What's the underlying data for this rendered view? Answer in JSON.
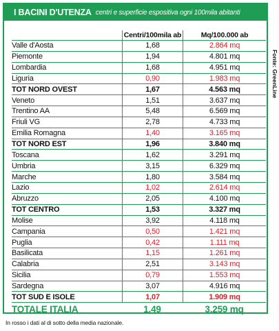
{
  "header": {
    "title": "I BACINI D'UTENZA",
    "subtitle": "centri e superficie espositiva ogni 100mila abitanti"
  },
  "columns": [
    "",
    "Centri/100mila ab",
    "Mq/100.000 ab"
  ],
  "rows": [
    {
      "name": "Valle d'Aosta",
      "centri": "1,68",
      "mq": "2.864 mq",
      "centri_red": false,
      "mq_red": true,
      "bold": false
    },
    {
      "name": "Piemonte",
      "centri": "1,94",
      "mq": "4.801 mq",
      "centri_red": false,
      "mq_red": false,
      "bold": false
    },
    {
      "name": "Lombardia",
      "centri": "1,68",
      "mq": "4.951 mq",
      "centri_red": false,
      "mq_red": false,
      "bold": false
    },
    {
      "name": "Liguria",
      "centri": "0,90",
      "mq": "1.983 mq",
      "centri_red": true,
      "mq_red": true,
      "bold": false
    },
    {
      "name": "TOT NORD OVEST",
      "centri": "1,67",
      "mq": "4.563 mq",
      "centri_red": false,
      "mq_red": false,
      "bold": true
    },
    {
      "name": "Veneto",
      "centri": "1,51",
      "mq": "3.637 mq",
      "centri_red": false,
      "mq_red": false,
      "bold": false
    },
    {
      "name": "Trentino AA",
      "centri": "5,48",
      "mq": "6.569  mq",
      "centri_red": false,
      "mq_red": false,
      "bold": false
    },
    {
      "name": "Friuli VG",
      "centri": "2,78",
      "mq": "4.733 mq",
      "centri_red": false,
      "mq_red": false,
      "bold": false
    },
    {
      "name": "Emilia Romagna",
      "centri": "1,40",
      "mq": "3.165 mq",
      "centri_red": true,
      "mq_red": true,
      "bold": false
    },
    {
      "name": "TOT NORD EST",
      "centri": "1,96",
      "mq": "3.840 mq",
      "centri_red": false,
      "mq_red": false,
      "bold": true
    },
    {
      "name": "Toscana",
      "centri": "1,62",
      "mq": "3.291 mq",
      "centri_red": false,
      "mq_red": false,
      "bold": false
    },
    {
      "name": "Umbria",
      "centri": "3,15",
      "mq": "6.329 mq",
      "centri_red": false,
      "mq_red": false,
      "bold": false
    },
    {
      "name": "Marche",
      "centri": "1,80",
      "mq": "3.584 mq",
      "centri_red": false,
      "mq_red": false,
      "bold": false
    },
    {
      "name": "Lazio",
      "centri": "1,02",
      "mq": "2.614 mq",
      "centri_red": true,
      "mq_red": true,
      "bold": false
    },
    {
      "name": "Abruzzo",
      "centri": "2,05",
      "mq": "4.100 mq",
      "centri_red": false,
      "mq_red": false,
      "bold": false
    },
    {
      "name": "TOT CENTRO",
      "centri": "1,53",
      "mq": "3.327 mq",
      "centri_red": false,
      "mq_red": false,
      "bold": true
    },
    {
      "name": "Molise",
      "centri": "3,92",
      "mq": "4.118 mq",
      "centri_red": false,
      "mq_red": false,
      "bold": false
    },
    {
      "name": "Campania",
      "centri": "0,50",
      "mq": "1.421 mq",
      "centri_red": true,
      "mq_red": true,
      "bold": false
    },
    {
      "name": "Puglia",
      "centri": "0,42",
      "mq": "1.111 mq",
      "centri_red": true,
      "mq_red": true,
      "bold": false
    },
    {
      "name": "Basilicata",
      "centri": "1,15",
      "mq": "1.261 mq",
      "centri_red": true,
      "mq_red": true,
      "bold": false
    },
    {
      "name": "Calabria",
      "centri": "2,51",
      "mq": "3.143 mq",
      "centri_red": false,
      "mq_red": true,
      "bold": false
    },
    {
      "name": "Sicilia",
      "centri": "0,79",
      "mq": "1.553 mq",
      "centri_red": true,
      "mq_red": true,
      "bold": false
    },
    {
      "name": "Sardegna",
      "centri": "3,07",
      "mq": "4.916 mq",
      "centri_red": false,
      "mq_red": false,
      "bold": false
    },
    {
      "name": "TOT SUD E ISOLE",
      "centri": "1,07",
      "mq": "1.909 mq",
      "centri_red": true,
      "mq_red": true,
      "bold": true
    }
  ],
  "total": {
    "name": "TOTALE ITALIA",
    "centri": "1,49",
    "mq": "3.259 mq"
  },
  "source": "Fonte: GreenLine",
  "footnote": "In rosso i dati al di sotto della media nazionale.",
  "colors": {
    "accent": "#1f9d55",
    "below_average": "#e31b23",
    "text": "#111111"
  }
}
